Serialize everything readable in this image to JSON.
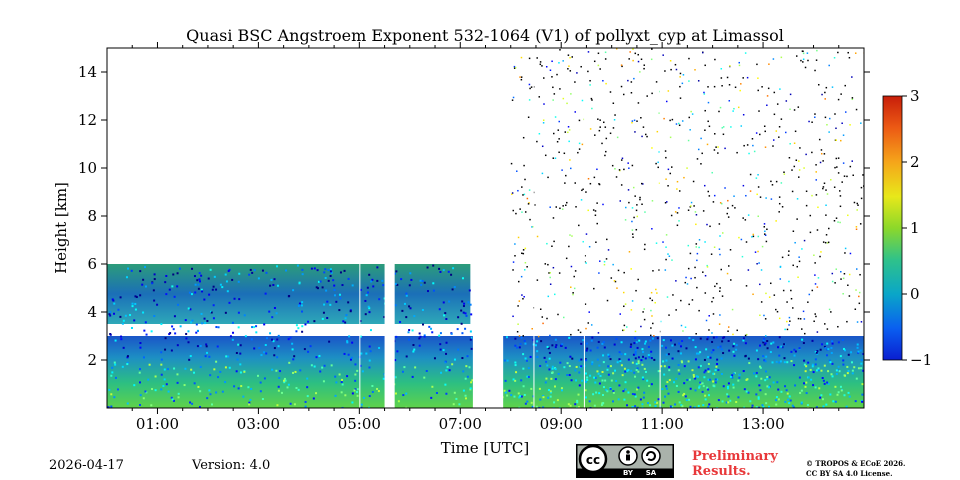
{
  "chart_data": {
    "type": "heatmap",
    "title": "Quasi BSC Angstroem Exponent 532-1064 (V1) of pollyxt_cyp at Limassol",
    "xlabel": "Time [UTC]",
    "ylabel": "Height [km]",
    "xlim": [
      0,
      15
    ],
    "ylim": [
      0,
      15
    ],
    "x_tick_labels": [
      "01:00",
      "03:00",
      "05:00",
      "07:00",
      "09:00",
      "11:00",
      "13:00"
    ],
    "x_tick_values": [
      1,
      3,
      5,
      7,
      9,
      11,
      13
    ],
    "y_tick_values": [
      2,
      4,
      6,
      8,
      10,
      12,
      14
    ],
    "y_tick_labels": [
      "2",
      "4",
      "6",
      "8",
      "10",
      "12",
      "14"
    ],
    "colorbar": {
      "min": -1,
      "max": 3,
      "tick_values": [
        -1,
        0,
        1,
        2,
        3
      ],
      "tick_labels": [
        "−1",
        "0",
        "1",
        "2",
        "3"
      ],
      "colormap": "jet"
    },
    "layers": [
      {
        "name": "boundary-layer",
        "start_time": 0,
        "end_time": 15,
        "top_height": 3.0,
        "value": 0.2
      },
      {
        "name": "elevated-aerosol-layer",
        "start_time": 0,
        "end_time": 7.2,
        "bottom_height": 3.5,
        "top_height": 6.0,
        "value": -0.1
      }
    ]
  },
  "footer": {
    "date": "2026-04-17",
    "version": "Version: 4.0",
    "preliminary_line1": "Preliminary",
    "preliminary_line2": "Results.",
    "copyright_line1": "© TROPOS & ECoE 2026.",
    "copyright_line2": "CC BY SA 4.0 License.",
    "cc_labels": [
      "BY",
      "SA"
    ]
  },
  "colors": {
    "low": "#1a3fd6",
    "mid": "#25c3a0",
    "high": "#d42a16"
  }
}
